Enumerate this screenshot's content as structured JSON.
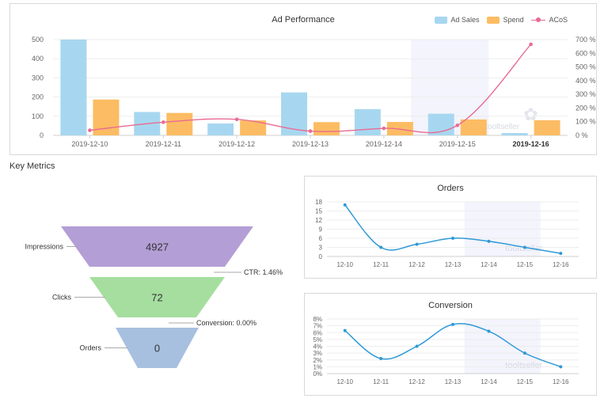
{
  "colors": {
    "ad_sales": "#a7d7f0",
    "spend": "#fcbc63",
    "acos": "#e96b92",
    "line": "#2e9ad7",
    "funnel_impressions": "#b39ed6",
    "funnel_clicks": "#a6de9f",
    "funnel_orders": "#a8c0e0"
  },
  "watermark": "tooltseller",
  "section": {
    "title": "Key Metrics"
  },
  "funnel": {
    "stages": [
      {
        "label": "Impressions",
        "value": "4927"
      },
      {
        "label": "Clicks",
        "value": "72"
      },
      {
        "label": "Orders",
        "value": "0"
      }
    ],
    "rates": [
      "CTR: 1.46%",
      "Conversion: 0.00%"
    ]
  },
  "chart_data": [
    {
      "type": "bar",
      "title": "Ad Performance",
      "categories": [
        "2019-12-10",
        "2019-12-11",
        "2019-12-12",
        "2019-12-13",
        "2019-12-14",
        "2019-12-15",
        "2019-12-16"
      ],
      "highlighted_category": "2019-12-16",
      "series": [
        {
          "name": "Ad Sales",
          "type": "bar",
          "axis": "left",
          "values": [
            500,
            122,
            62,
            224,
            137,
            113,
            12
          ]
        },
        {
          "name": "Spend",
          "type": "bar",
          "axis": "left",
          "values": [
            187,
            117,
            78,
            69,
            70,
            83,
            79
          ]
        },
        {
          "name": "ACoS",
          "type": "line",
          "axis": "right",
          "values": [
            37,
            96,
            117,
            31,
            51,
            73,
            665
          ]
        }
      ],
      "ylim": [
        0,
        500
      ],
      "yticks": [
        "0",
        "100",
        "200",
        "300",
        "400",
        "500"
      ],
      "y2lim": [
        0,
        700
      ],
      "y2ticks": [
        "0 %",
        "100 %",
        "200 %",
        "300 %",
        "400 %",
        "500 %",
        "600 %",
        "700 %"
      ],
      "legend": "top-right",
      "grid": true
    },
    {
      "type": "line",
      "title": "Orders",
      "x": [
        "12-10",
        "12-11",
        "12-12",
        "12-13",
        "12-14",
        "12-15",
        "12-16"
      ],
      "series": [
        {
          "values": [
            17,
            3,
            4,
            6,
            5,
            3,
            1
          ]
        }
      ],
      "ylim": [
        0,
        18
      ],
      "yticks": [
        "0",
        "3",
        "6",
        "9",
        "12",
        "15",
        "18"
      ],
      "grid": true
    },
    {
      "type": "line",
      "title": "Conversion",
      "x": [
        "12-10",
        "12-11",
        "12-12",
        "12-13",
        "12-14",
        "12-15",
        "12-16"
      ],
      "series": [
        {
          "values": [
            6.3,
            2.2,
            4.0,
            7.2,
            6.2,
            3.0,
            1.0
          ]
        }
      ],
      "ylim": [
        0,
        8
      ],
      "yticks": [
        "0%",
        "1%",
        "2%",
        "3%",
        "4%",
        "5%",
        "6%",
        "7%",
        "8%"
      ],
      "grid": true
    }
  ]
}
